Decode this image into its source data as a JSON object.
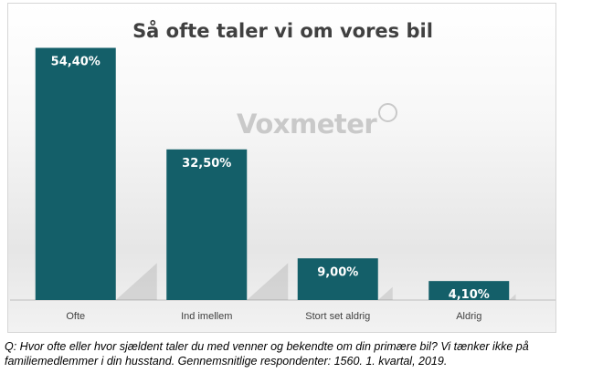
{
  "chart_data": {
    "type": "bar",
    "title": "Så ofte taler vi om vores bil",
    "categories": [
      "Ofte",
      "Ind imellem",
      "Stort set aldrig",
      "Aldrig"
    ],
    "values": [
      54.4,
      32.5,
      9.0,
      4.1
    ],
    "data_labels": [
      "54,40%",
      "32,50%",
      "9,00%",
      "4,10%"
    ],
    "ylim": [
      0,
      60
    ],
    "grid": false,
    "bar_color": "#145f69"
  },
  "watermark": "Voxmeter",
  "caption": "Q: Hvor ofte eller hvor sjældent taler du med venner og bekendte om din primære bil? Vi tænker ikke på familiemedlemmer i din husstand. Gennemsnitlige respondenter: 1560. 1. kvartal, 2019."
}
